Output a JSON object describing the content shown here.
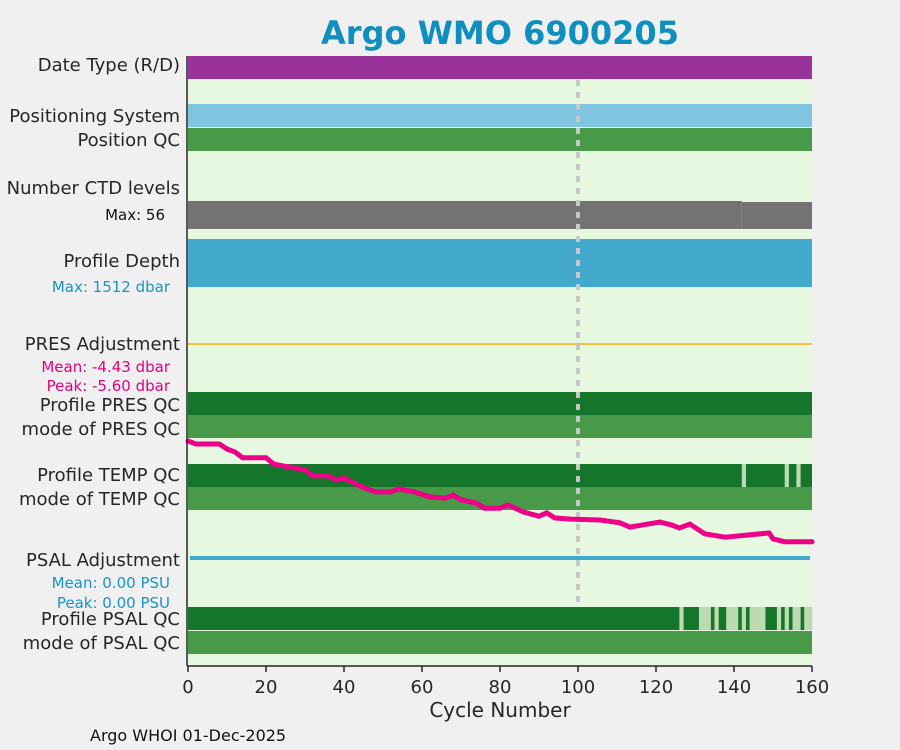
{
  "chart_data": {
    "type": "bar",
    "title": "Argo WMO 6900205",
    "xlabel": "Cycle Number",
    "xlim": [
      0,
      160
    ],
    "xticks": [
      "0",
      "20",
      "40",
      "60",
      "80",
      "100",
      "120",
      "140",
      "160"
    ],
    "reference_cycle": 100,
    "footer": "Argo WHOI 01-Dec-2025",
    "colors": {
      "title": "#0f8fc0",
      "background": "#e6f8e0",
      "pres_adj_text": "#e6007e",
      "info_text": "#1a94c4",
      "dark_green": "#14752b",
      "mode_green": "#489a48",
      "light_green": "#bddbb0",
      "pink": "#ee0088"
    },
    "rows": {
      "date_type": {
        "label": "Date Type (R/D)",
        "color": "#993399"
      },
      "positioning_system": {
        "label": "Positioning System",
        "color": "#80c4df"
      },
      "position_qc": {
        "label": "Position QC",
        "color": "#489a48"
      },
      "ctd_levels": {
        "label": "Number CTD levels",
        "max_label": "Max: 56",
        "color": "#737373"
      },
      "profile_depth": {
        "label": "Profile Depth",
        "max_label": "Max: 1512 dbar",
        "color": "#42a9cd"
      },
      "pres_adjustment": {
        "label": "PRES Adjustment",
        "mean_label": "Mean: -4.43 dbar",
        "peak_label": "Peak: -5.60 dbar",
        "color": "#f5c040"
      },
      "profile_pres_qc": {
        "label": "Profile PRES QC",
        "mode_label": "mode of PRES QC",
        "bad_cycles": []
      },
      "profile_temp_qc": {
        "label": "Profile TEMP QC",
        "mode_label": "mode of TEMP QC",
        "bad_cycles": [
          142,
          153,
          156
        ]
      },
      "psal_adjustment": {
        "label": "PSAL Adjustment",
        "mean_label": "Mean: 0.00 PSU",
        "peak_label": "Peak: 0.00 PSU",
        "color": "#42a9cd"
      },
      "profile_psal_qc": {
        "label": "Profile PSAL QC",
        "mode_label": "mode of PSAL QC",
        "bad_cycles": [
          126,
          131,
          132,
          133,
          135,
          138,
          139,
          140,
          142,
          144,
          145,
          146,
          147,
          151,
          153,
          155,
          156,
          158,
          159
        ]
      }
    },
    "pres_adjustment_series": {
      "name": "PRES adjustment (dbar)",
      "x": [
        0,
        2,
        8,
        10,
        12,
        14,
        20,
        22,
        26,
        30,
        32,
        36,
        38,
        40,
        44,
        48,
        52,
        54,
        58,
        62,
        66,
        68,
        70,
        74,
        76,
        80,
        82,
        86,
        90,
        92,
        94,
        98,
        105.6,
        110.8,
        113.3,
        121,
        124,
        126,
        128.7,
        132.5,
        137.7,
        149,
        150,
        153,
        159.5,
        160
      ],
      "y": [
        -3.2,
        -3.27,
        -3.27,
        -3.39,
        -3.46,
        -3.6,
        -3.6,
        -3.75,
        -3.82,
        -3.89,
        -4.03,
        -4.03,
        -4.13,
        -4.08,
        -4.27,
        -4.41,
        -4.41,
        -4.34,
        -4.41,
        -4.53,
        -4.56,
        -4.49,
        -4.6,
        -4.68,
        -4.8,
        -4.8,
        -4.72,
        -4.89,
        -4.99,
        -4.91,
        -5.03,
        -5.06,
        -5.08,
        -5.15,
        -5.25,
        -5.13,
        -5.2,
        -5.27,
        -5.18,
        -5.41,
        -5.49,
        -5.39,
        -5.53,
        -5.6,
        -5.6,
        -5.6
      ]
    }
  }
}
